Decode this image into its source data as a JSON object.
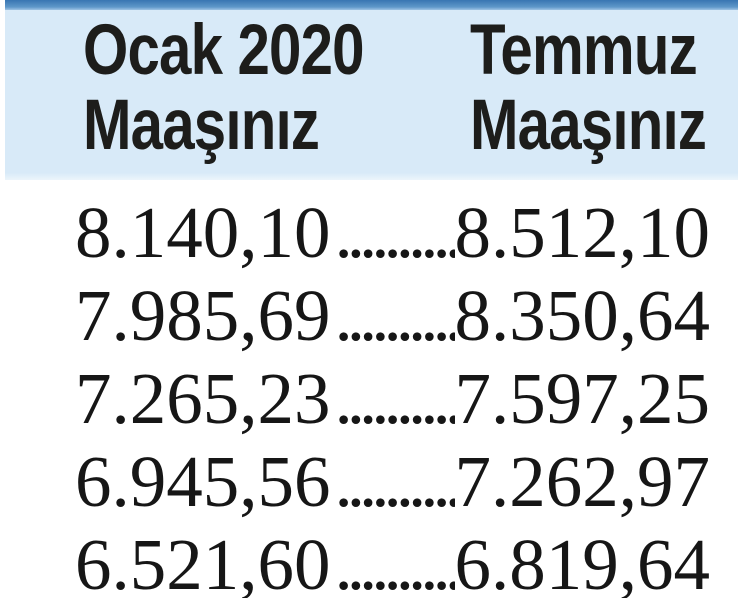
{
  "colors": {
    "top_bar_blue": "#3875b2",
    "header_bg": "#d8eaf8",
    "text": "#1d1d1b"
  },
  "table": {
    "header": {
      "col1_line1": "Ocak 2020",
      "col1_line2": "Maaşınız",
      "col2_line1": "Temmuz",
      "col2_line2": "Maaşınız"
    },
    "leader_dots": "......................................................",
    "rows": [
      {
        "ocak": "8.140,10",
        "temmuz": "8.512,10"
      },
      {
        "ocak": "7.985,69",
        "temmuz": "8.350,64"
      },
      {
        "ocak": "7.265,23",
        "temmuz": "7.597,25"
      },
      {
        "ocak": "6.945,56",
        "temmuz": "7.262,97"
      },
      {
        "ocak": "6.521,60",
        "temmuz": "6.819,64"
      }
    ]
  },
  "chart_data": {
    "type": "table",
    "title": "Ocak 2020 Maaşınız vs Temmuz Maaşınız",
    "columns": [
      "Ocak 2020 Maaşınız",
      "Temmuz Maaşınız"
    ],
    "rows_display": [
      [
        "8.140,10",
        "8.512,10"
      ],
      [
        "7.985,69",
        "8.350,64"
      ],
      [
        "7.265,23",
        "7.597,25"
      ],
      [
        "6.945,56",
        "7.262,97"
      ],
      [
        "6.521,60",
        "6.819,64"
      ]
    ],
    "rows_numeric": [
      [
        8140.1,
        8512.1
      ],
      [
        7985.69,
        8350.64
      ],
      [
        7265.23,
        7597.25
      ],
      [
        6945.56,
        7262.97
      ],
      [
        6521.6,
        6819.64
      ]
    ]
  }
}
